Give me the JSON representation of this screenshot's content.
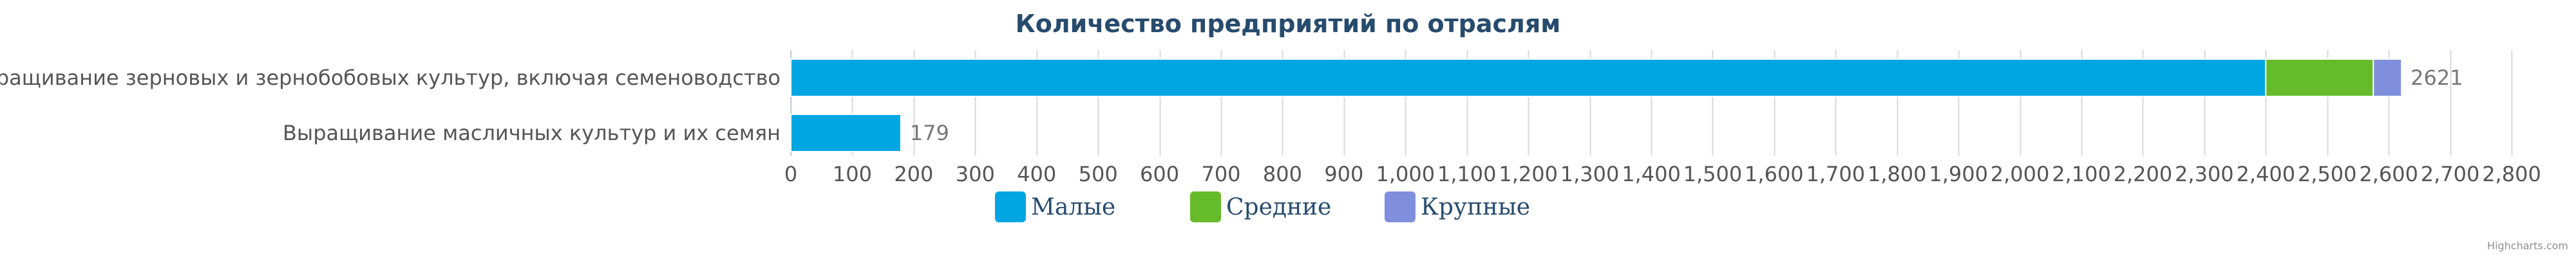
{
  "chart_data": {
    "type": "bar",
    "orientation": "horizontal",
    "stacked": true,
    "title": "Количество предприятий по отраслям",
    "categories": [
      "Выращивание зерновых и зернобобовых культур, включая семеноводство",
      "Выращивание масличных культур и их семян"
    ],
    "series": [
      {
        "name": "Малые",
        "color": "#00a6e2",
        "values": [
          2400,
          179
        ]
      },
      {
        "name": "Средние",
        "color": "#66bb2a",
        "values": [
          175,
          0
        ]
      },
      {
        "name": "Крупные",
        "color": "#7f8fdd",
        "values": [
          46,
          0
        ]
      }
    ],
    "totals": [
      "2621",
      "179"
    ],
    "xlim": [
      0,
      2800
    ],
    "xticks": [
      "0",
      "100",
      "200",
      "300",
      "400",
      "500",
      "600",
      "700",
      "800",
      "900",
      "1,000",
      "1,100",
      "1,200",
      "1,300",
      "1,400",
      "1,500",
      "1,600",
      "1,700",
      "1,800",
      "1,900",
      "2,000",
      "2,100",
      "2,200",
      "2,300",
      "2,400",
      "2,500",
      "2,600",
      "2,700",
      "2,800"
    ],
    "grid": true,
    "legend_position": "bottom-center"
  },
  "credits": "Highcharts.com"
}
